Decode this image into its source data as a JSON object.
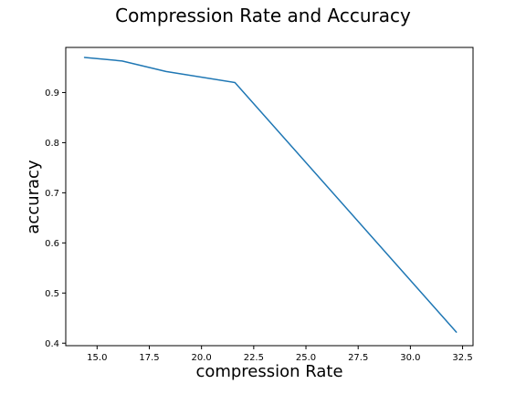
{
  "chart_data": {
    "type": "line",
    "title": "Compression Rate and Accuracy",
    "xlabel": "compression Rate",
    "ylabel": "accuracy",
    "xlim": [
      13.5,
      33.0
    ],
    "ylim": [
      0.395,
      0.99
    ],
    "x_ticks": [
      15.0,
      17.5,
      20.0,
      22.5,
      25.0,
      27.5,
      30.0,
      32.5
    ],
    "x_tick_labels": [
      "15.0",
      "17.5",
      "20.0",
      "22.5",
      "25.0",
      "27.5",
      "30.0",
      "32.5"
    ],
    "y_ticks": [
      0.4,
      0.5,
      0.6,
      0.7,
      0.8,
      0.9
    ],
    "y_tick_labels": [
      "0.4",
      "0.5",
      "0.6",
      "0.7",
      "0.8",
      "0.9"
    ],
    "grid": false,
    "series": [
      {
        "color": "#1f77b4",
        "x": [
          14.4,
          16.2,
          18.3,
          21.6,
          32.2
        ],
        "y": [
          0.97,
          0.963,
          0.942,
          0.92,
          0.422
        ]
      }
    ]
  }
}
